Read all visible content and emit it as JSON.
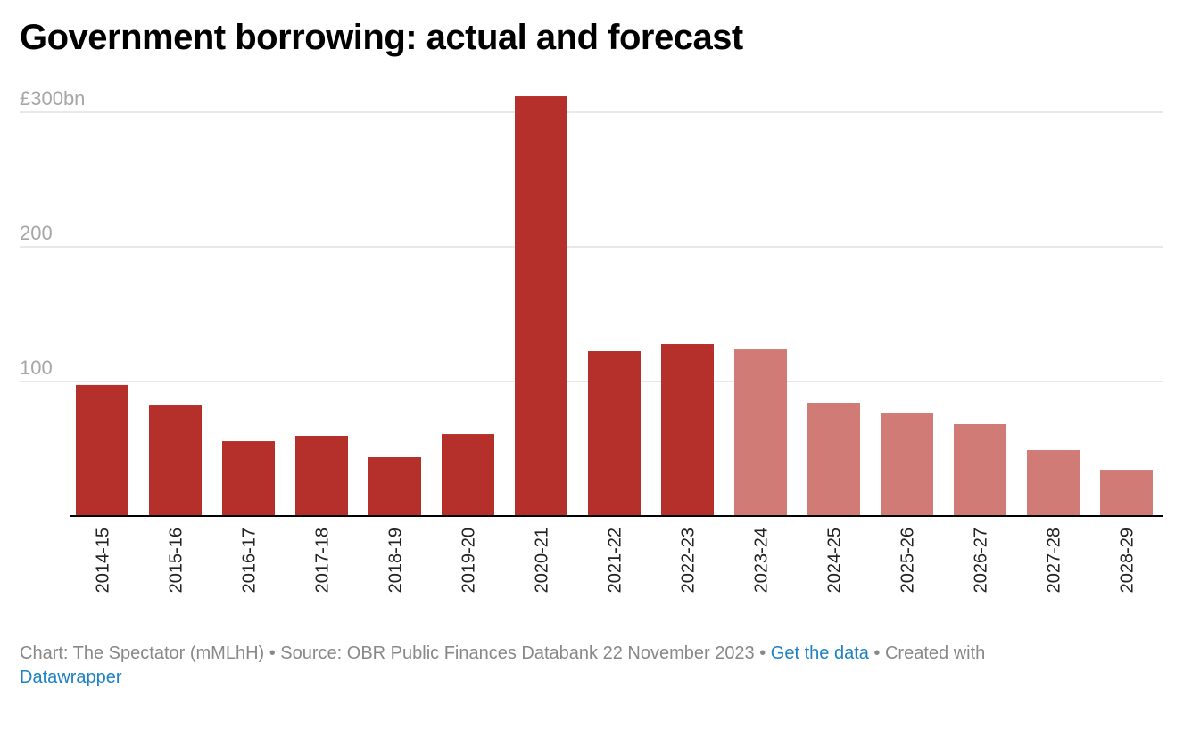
{
  "chart_data": {
    "type": "bar",
    "title": "Government borrowing: actual and forecast",
    "xlabel": "",
    "ylabel": "",
    "ylim": [
      0,
      300
    ],
    "y_ticks": [
      100,
      200,
      300
    ],
    "y_tick_labels": [
      "100",
      "200",
      "£300bn"
    ],
    "grid": true,
    "categories": [
      "2014-15",
      "2015-16",
      "2016-17",
      "2017-18",
      "2018-19",
      "2019-20",
      "2020-21",
      "2021-22",
      "2022-23",
      "2023-24",
      "2024-25",
      "2025-26",
      "2026-27",
      "2027-28",
      "2028-29"
    ],
    "values": [
      97.4,
      82.1,
      55.6,
      59.6,
      43.7,
      60.9,
      311.9,
      122.5,
      127.8,
      123.8,
      84.1,
      76.8,
      68.2,
      49.0,
      34.4
    ],
    "kind": [
      "actual",
      "actual",
      "actual",
      "actual",
      "actual",
      "actual",
      "actual",
      "actual",
      "actual",
      "forecast",
      "forecast",
      "forecast",
      "forecast",
      "forecast",
      "forecast"
    ],
    "colors": {
      "actual": "#b5302a",
      "forecast": "#d07b76",
      "grid": "#e0e0e0",
      "axis": "#000000",
      "tick_text": "#a6a6a6"
    }
  },
  "footer": {
    "credit": "Chart: The Spectator (mMLhH) • Source: OBR Public Finances Databank 22 November 2023 • ",
    "get_data": "Get the data",
    "created": " • Created with ",
    "datawrapper": "Datawrapper"
  }
}
